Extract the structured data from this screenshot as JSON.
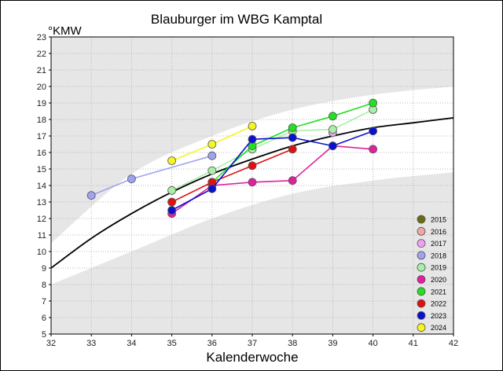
{
  "chart_data": {
    "type": "line",
    "title": "Blauburger im WBG Kamptal",
    "xlabel": "Kalenderwoche",
    "ylabel": "°KMW",
    "xlim": [
      32,
      42
    ],
    "ylim": [
      5,
      23
    ],
    "x_ticks": [
      "32",
      "33",
      "34",
      "35",
      "36",
      "37",
      "38",
      "39",
      "40",
      "41",
      "42"
    ],
    "y_ticks": [
      "5",
      "6",
      "7",
      "8",
      "9",
      "10",
      "11",
      "12",
      "13",
      "14",
      "15",
      "16",
      "17",
      "18",
      "19",
      "20",
      "21",
      "22",
      "23"
    ],
    "grid": true,
    "legend_position": "bottom-right",
    "background_bands": {
      "upper": [
        [
          32,
          20.2
        ],
        [
          34,
          21.2
        ],
        [
          36,
          21.8
        ],
        [
          38,
          22.0
        ],
        [
          40,
          22.0
        ],
        [
          42,
          22.0
        ]
      ],
      "mid": [
        [
          32,
          10.5
        ],
        [
          34,
          14.7
        ],
        [
          36,
          17.0
        ],
        [
          38,
          18.6
        ],
        [
          40,
          19.5
        ],
        [
          42,
          20.0
        ]
      ],
      "lower_top": [
        [
          32,
          8.0
        ],
        [
          34,
          10.0
        ],
        [
          36,
          12.0
        ],
        [
          38,
          13.5
        ],
        [
          40,
          14.3
        ],
        [
          42,
          14.8
        ]
      ],
      "lower_bottom": [
        [
          32,
          5.0
        ],
        [
          42,
          5.0
        ]
      ]
    },
    "trend": [
      [
        32,
        9.0
      ],
      [
        33,
        10.8
      ],
      [
        34,
        12.3
      ],
      [
        35,
        13.6
      ],
      [
        36,
        14.7
      ],
      [
        37,
        15.6
      ],
      [
        38,
        16.4
      ],
      [
        39,
        17.0
      ],
      [
        40,
        17.5
      ],
      [
        41,
        17.8
      ],
      [
        42,
        18.1
      ]
    ],
    "series": [
      {
        "name": "2015",
        "color": "#6b6b10",
        "x": [],
        "y": []
      },
      {
        "name": "2016",
        "color": "#f0a6a6",
        "x": [],
        "y": []
      },
      {
        "name": "2017",
        "color": "#f0a0f0",
        "x": [
          39
        ],
        "y": [
          17.2
        ]
      },
      {
        "name": "2018",
        "color": "#9fa2f0",
        "x": [
          33,
          34,
          36
        ],
        "y": [
          13.4,
          14.4,
          15.8
        ]
      },
      {
        "name": "2019",
        "color": "#a8f0a8",
        "x": [
          35,
          36,
          37,
          38,
          39,
          40
        ],
        "y": [
          13.7,
          14.9,
          16.2,
          17.3,
          17.4,
          18.6
        ]
      },
      {
        "name": "2020",
        "color": "#e020a0",
        "x": [
          35,
          36,
          37,
          38,
          39,
          40
        ],
        "y": [
          12.3,
          14.0,
          14.2,
          14.3,
          16.4,
          16.2
        ]
      },
      {
        "name": "2021",
        "color": "#22e022",
        "x": [
          36,
          37,
          38,
          39,
          40
        ],
        "y": [
          14.2,
          16.4,
          17.5,
          18.2,
          19.0
        ]
      },
      {
        "name": "2022",
        "color": "#e01010",
        "x": [
          35,
          36,
          37,
          38
        ],
        "y": [
          13.0,
          14.2,
          15.2,
          16.2
        ]
      },
      {
        "name": "2023",
        "color": "#0a10d0",
        "x": [
          35,
          36,
          37,
          38,
          39,
          40
        ],
        "y": [
          12.5,
          13.8,
          16.8,
          16.9,
          16.4,
          17.3
        ]
      },
      {
        "name": "2024",
        "color": "#f5f522",
        "x": [
          35,
          36,
          37
        ],
        "y": [
          15.5,
          16.5,
          17.6
        ]
      }
    ]
  }
}
